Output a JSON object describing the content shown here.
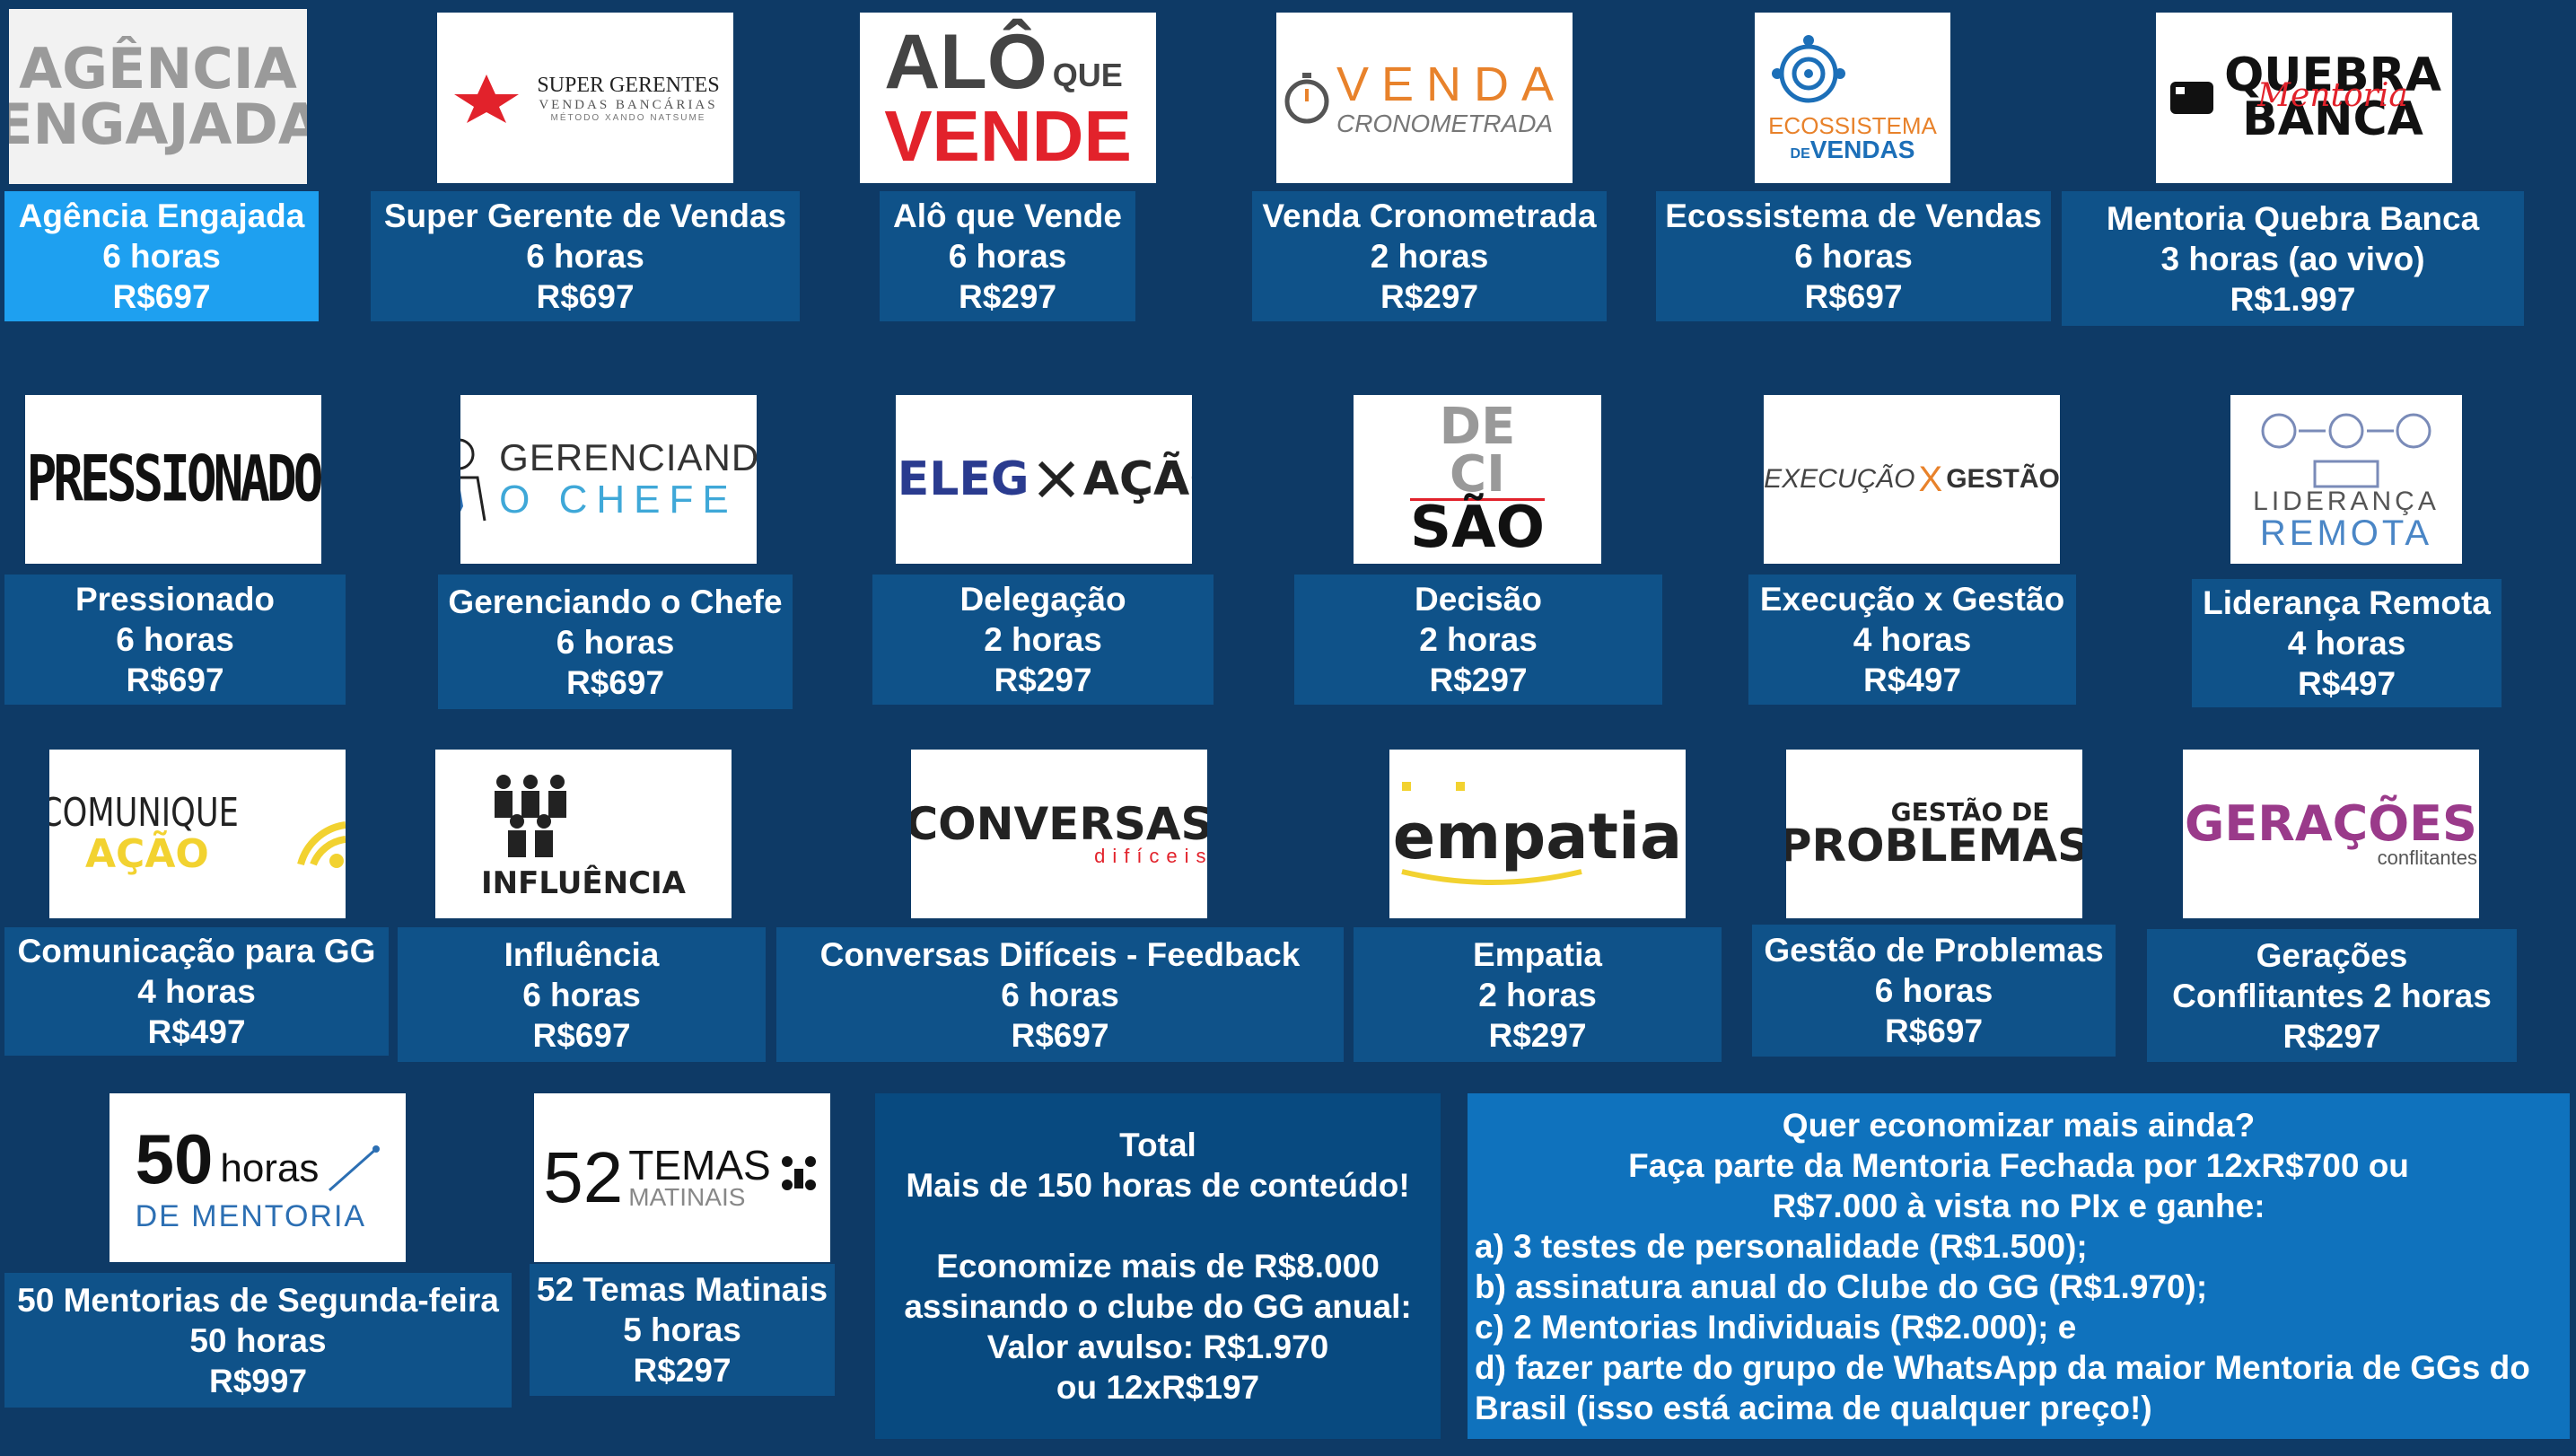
{
  "courses": [
    {
      "logo": "AGÊNCIA ENGAJADA",
      "title": "Agência Engajada",
      "duration": "6 horas",
      "price": "R$697"
    },
    {
      "logo": "SUPER GERENTES",
      "logo_sub": "VENDAS BANCÁRIAS",
      "logo_sub2": "MÉTODO XANDO NATSUME",
      "title": "Super Gerente de Vendas",
      "duration": "6 horas",
      "price": "R$697"
    },
    {
      "logo": "ALÔ",
      "logo_sub": "QUE",
      "logo_sub2": "VENDE",
      "title": "Alô que  Vende",
      "duration": "6 horas",
      "price": "R$297"
    },
    {
      "logo": "VENDA",
      "logo_sub": "CRONOMETRADA",
      "title": "Venda Cronometrada",
      "duration": "2 horas",
      "price": "R$297"
    },
    {
      "logo": "ECOSSISTEMA",
      "logo_sub": "DE",
      "logo_sub2": "VENDAS",
      "title": "Ecossistema de Vendas",
      "duration": "6 horas",
      "price": "R$697"
    },
    {
      "logo": "QUEBRA",
      "logo_sub": "Mentoria",
      "logo_sub2": "BANCA",
      "title": "Mentoria Quebra Banca",
      "duration": "3 horas (ao vivo)",
      "price": "R$1.997"
    },
    {
      "logo": "PRESSIONADO",
      "title": "Pressionado",
      "duration": "6 horas",
      "price": "R$697"
    },
    {
      "logo": "GERENCIANDO",
      "logo_sub": "O CHEFE",
      "title": "Gerenciando o Chefe",
      "duration": "6 horas",
      "price": "R$697"
    },
    {
      "logo": "DELEG",
      "logo_sub": "AÇÃO",
      "title": "Delegação",
      "duration": "2 horas",
      "price": "R$297"
    },
    {
      "logo": "DE",
      "logo_sub": "CI",
      "logo_sub2": "SÃO",
      "title": "Decisão",
      "duration": "2 horas",
      "price": "R$297"
    },
    {
      "logo": "EXECUÇÃO",
      "logo_sub": "X",
      "logo_sub2": "GESTÃO",
      "title": "Execução x Gestão",
      "duration": "4 horas",
      "price": "R$497"
    },
    {
      "logo": "LIDERANÇA",
      "logo_sub": "REMOTA",
      "title": "Liderança Remota",
      "duration": "4 horas",
      "price": "R$497"
    },
    {
      "logo": "COMUNIQUE",
      "logo_sub": "AÇÃO",
      "title": "Comunicação para GG",
      "duration": "4 horas",
      "price": "R$497"
    },
    {
      "logo": "INFLUÊNCIA",
      "title": "Influência",
      "duration": "6 horas",
      "price": "R$697"
    },
    {
      "logo": "CONVERSAS",
      "logo_sub": "difíceis",
      "title": "Conversas Difíceis - Feedback",
      "duration": "6 horas",
      "price": "R$697"
    },
    {
      "logo": "empatia",
      "title": "Empatia",
      "duration": "2 horas",
      "price": "R$297"
    },
    {
      "logo": "GESTÃO DE",
      "logo_sub": "PROBLEMAS",
      "title": "Gestão de Problemas",
      "duration": "6 horas",
      "price": "R$697"
    },
    {
      "logo": "GERAÇÕES",
      "logo_sub": "conflitantes",
      "title": "Gerações",
      "duration": "Conflitantes 2 horas",
      "price": "R$297"
    },
    {
      "logo": "50",
      "logo_sub": "horas",
      "logo_sub2": "DE MENTORIA",
      "title": "50 Mentorias de Segunda-feira",
      "duration": "50 horas",
      "price": "R$997"
    },
    {
      "logo": "52",
      "logo_sub": "TEMAS",
      "logo_sub2": "MATINAIS",
      "title": "52 Temas Matinais",
      "duration": "5 horas",
      "price": "R$297"
    }
  ],
  "summary": {
    "line1": "Total",
    "line2": "Mais de 150 horas de conteúdo!",
    "line3": "Economize mais de R$8.000",
    "line4": "assinando o clube do GG anual:",
    "line5": "Valor avulso: R$1.970",
    "line6": "ou 12xR$197"
  },
  "offer": {
    "line1": "Quer economizar mais ainda?",
    "line2": "Faça parte da Mentoria Fechada por  12xR$700 ou",
    "line3": "R$7.000 à vista no PIx e ganhe:",
    "item_a": "a) 3 testes de personalidade (R$1.500);",
    "item_b": "b) assinatura anual do Clube do GG (R$1.970);",
    "item_c": "c) 2 Mentorias Individuais (R$2.000); e",
    "item_d1": "d) fazer parte do grupo de WhatsApp da maior Mentoria de GGs do",
    "item_d2": "Brasil (isso está acima de qualquer preço!)"
  },
  "colors": {
    "background": "#0e3a66",
    "card": "#0f5289",
    "card_active": "#1ea0f0",
    "summary_box": "#084a80",
    "offer_box": "#0f72bd",
    "accent_red": "#e2222b",
    "accent_yellow": "#f2d230"
  }
}
